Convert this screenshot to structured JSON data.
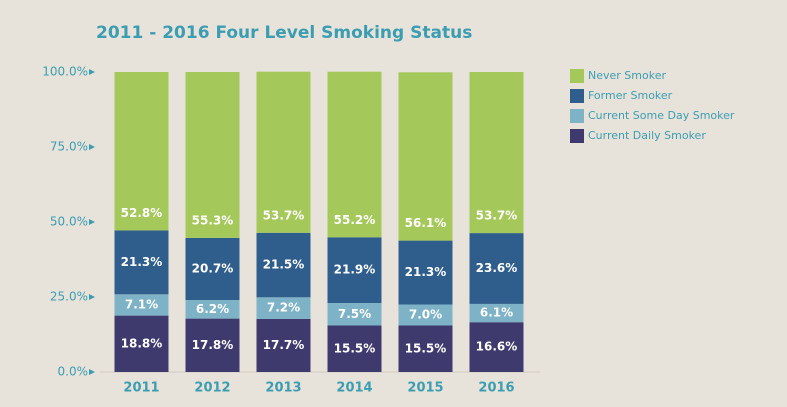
{
  "chart_data": {
    "type": "stacked_bar",
    "title": "2011 - 2016 Four Level Smoking Status",
    "categories": [
      "2011",
      "2012",
      "2013",
      "2014",
      "2015",
      "2016"
    ],
    "series": [
      {
        "name": "Never Smoker",
        "color": "#a4c85a",
        "values": [
          52.8,
          55.3,
          53.7,
          55.2,
          56.1,
          53.7
        ],
        "value_labels": [
          "52.8%",
          "55.3%",
          "53.7%",
          "55.2%",
          "56.1%",
          "53.7%"
        ]
      },
      {
        "name": "Former Smoker",
        "color": "#2f5d8c",
        "values": [
          21.3,
          20.7,
          21.5,
          21.9,
          21.3,
          23.6
        ],
        "value_labels": [
          "21.3%",
          "20.7%",
          "21.5%",
          "21.9%",
          "21.3%",
          "23.6%"
        ]
      },
      {
        "name": "Current Some Day Smoker",
        "color": "#7eb2c6",
        "values": [
          7.1,
          6.2,
          7.2,
          7.5,
          7.0,
          6.1
        ],
        "value_labels": [
          "7.1%",
          "6.2%",
          "7.2%",
          "7.5%",
          "7.0%",
          "6.1%"
        ]
      },
      {
        "name": "Current Daily Smoker",
        "color": "#3e3a6d",
        "values": [
          18.8,
          17.8,
          17.7,
          15.5,
          15.5,
          16.6
        ],
        "value_labels": [
          "18.8%",
          "17.8%",
          "17.7%",
          "15.5%",
          "15.5%",
          "16.6%"
        ]
      }
    ],
    "ylim": [
      0,
      100
    ],
    "yticks": [
      {
        "value": 0,
        "label": "0.0%"
      },
      {
        "value": 25,
        "label": "25.0%"
      },
      {
        "value": 50,
        "label": "50.0%"
      },
      {
        "value": 75,
        "label": "75.0%"
      },
      {
        "value": 100,
        "label": "100.0%"
      }
    ],
    "legend": "right"
  }
}
